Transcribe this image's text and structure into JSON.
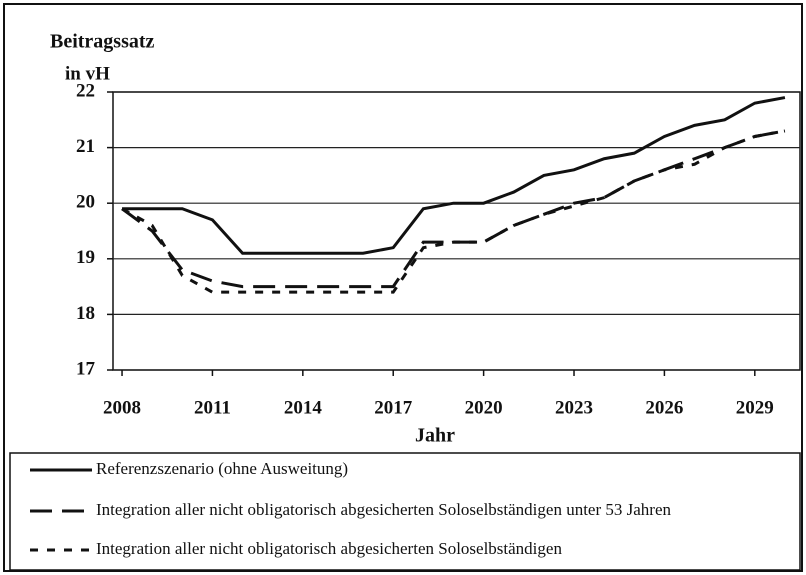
{
  "chart_data": {
    "type": "line",
    "title": "Beitragssatz",
    "subtitle": "in vH",
    "x_label": "Jahr",
    "x": [
      2008,
      2009,
      2010,
      2011,
      2012,
      2013,
      2014,
      2015,
      2016,
      2017,
      2018,
      2019,
      2020,
      2021,
      2022,
      2023,
      2024,
      2025,
      2026,
      2027,
      2028,
      2029,
      2030
    ],
    "series": [
      {
        "name": "Referenzszenario (ohne Ausweitung)",
        "color": "#111111",
        "dash": "solid",
        "values": [
          19.9,
          19.9,
          19.9,
          19.7,
          19.1,
          19.1,
          19.1,
          19.1,
          19.1,
          19.2,
          19.9,
          20.0,
          20.0,
          20.2,
          20.5,
          20.6,
          20.8,
          20.9,
          21.2,
          21.4,
          21.5,
          21.8,
          21.9
        ]
      },
      {
        "name": "Integration aller nicht obligatorisch abgesicherten Soloselbständigen unter 53 Jahren",
        "color": "#111111",
        "dash": "long",
        "values": [
          19.9,
          19.5,
          18.8,
          18.6,
          18.5,
          18.5,
          18.5,
          18.5,
          18.5,
          18.5,
          19.3,
          19.3,
          19.3,
          19.6,
          19.8,
          20.0,
          20.1,
          20.4,
          20.6,
          20.8,
          21.0,
          21.2,
          21.3
        ]
      },
      {
        "name": "Integration aller nicht obligatorisch abgesicherten Soloselbständigen",
        "color": "#111111",
        "dash": "short",
        "values": [
          19.9,
          19.6,
          18.7,
          18.4,
          18.4,
          18.4,
          18.4,
          18.4,
          18.4,
          18.4,
          19.2,
          19.3,
          19.3,
          19.6,
          19.8,
          19.95,
          20.1,
          20.4,
          20.6,
          20.7,
          21.0,
          21.2,
          21.3
        ]
      }
    ],
    "xlim": [
      2007.7,
      2030.5
    ],
    "xticks": [
      2008,
      2011,
      2014,
      2017,
      2020,
      2023,
      2026,
      2029
    ],
    "ylim": [
      17,
      22
    ],
    "yticks": [
      17,
      18,
      19,
      20,
      21,
      22
    ],
    "grid": true,
    "legend": "bottom"
  }
}
